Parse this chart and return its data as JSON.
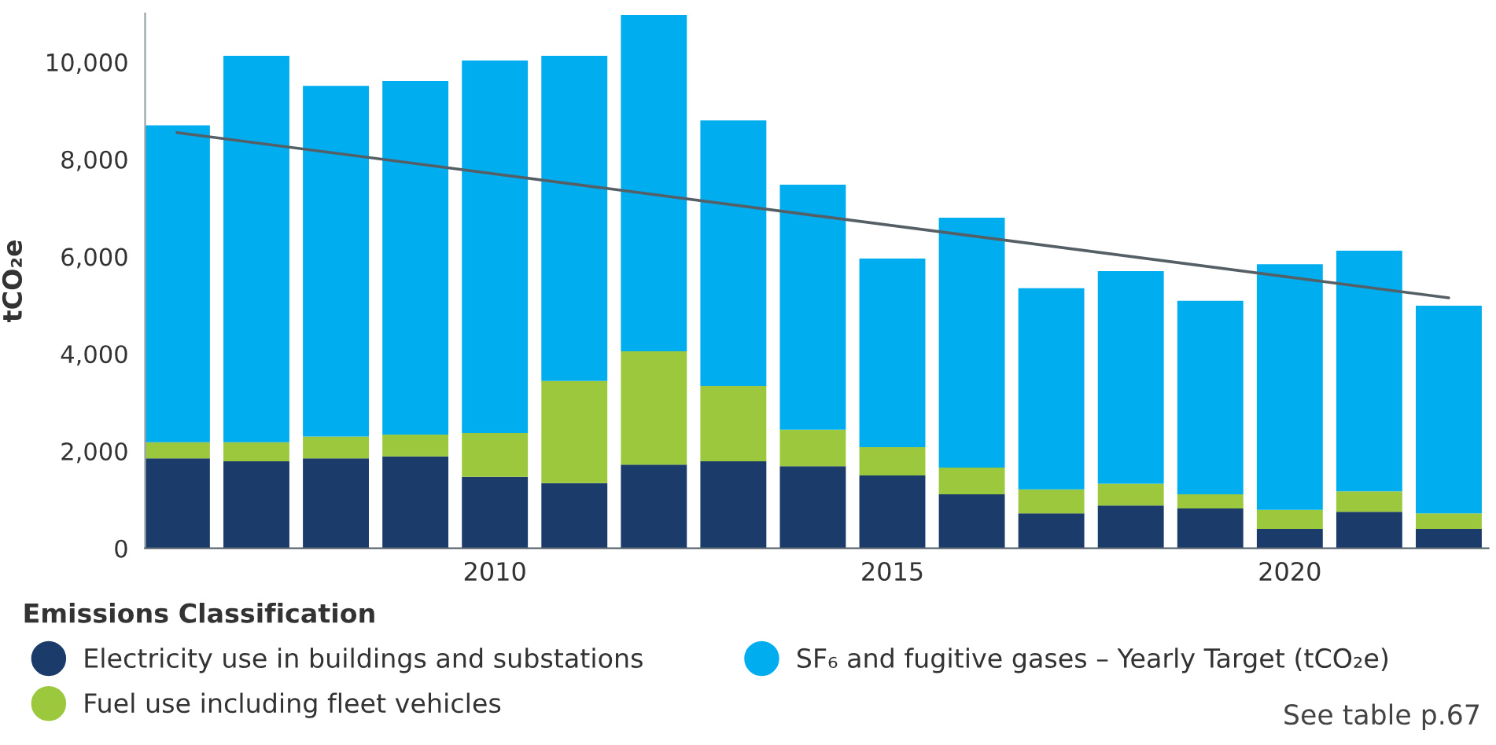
{
  "chart_data": {
    "type": "bar",
    "stacked": true,
    "ylabel": "tCO₂e",
    "legend_title": "Emissions Classification",
    "legend": "bottom",
    "grid": false,
    "x": [
      2006,
      2007,
      2008,
      2009,
      2010,
      2011,
      2012,
      2013,
      2014,
      2015,
      2016,
      2017,
      2018,
      2019,
      2020,
      2021,
      2022
    ],
    "xlim": [
      2005.6,
      2022.5
    ],
    "xticks": [
      2010,
      2015,
      2020
    ],
    "ylim": [
      0,
      11000
    ],
    "yticks": [
      0,
      {
        "value": 2000,
        "label": "2,000"
      },
      {
        "value": 4000,
        "label": "4,000"
      },
      {
        "value": 6000,
        "label": "6,000"
      },
      {
        "value": 8000,
        "label": "8,000"
      },
      {
        "value": 10000,
        "label": "10,000"
      }
    ],
    "series": [
      {
        "name": "Electricity use in buildings and substations",
        "color": "#1b3c6a",
        "values": [
          1850,
          1790,
          1850,
          1890,
          1470,
          1340,
          1720,
          1790,
          1690,
          1500,
          1110,
          720,
          880,
          820,
          400,
          750,
          400
        ]
      },
      {
        "name": "Fuel use including fleet vehicles",
        "color": "#9bc83d",
        "values": [
          330,
          390,
          450,
          450,
          900,
          2100,
          2330,
          1550,
          750,
          580,
          550,
          490,
          450,
          290,
          390,
          420,
          320
        ]
      },
      {
        "name": "SF₆ and fugitive gases – Yearly Target (tCO₂e)",
        "color": "#00adee",
        "values": [
          6520,
          7950,
          7210,
          7270,
          7660,
          6690,
          6920,
          5460,
          5040,
          3880,
          5140,
          4140,
          4370,
          3980,
          5050,
          4950,
          4270
        ]
      },
      {
        "type": "line",
        "color": "#555f66",
        "x": [
          2006,
          2022
        ],
        "values": [
          8550,
          5150
        ]
      }
    ],
    "annotations": [
      "See table p.67"
    ]
  }
}
